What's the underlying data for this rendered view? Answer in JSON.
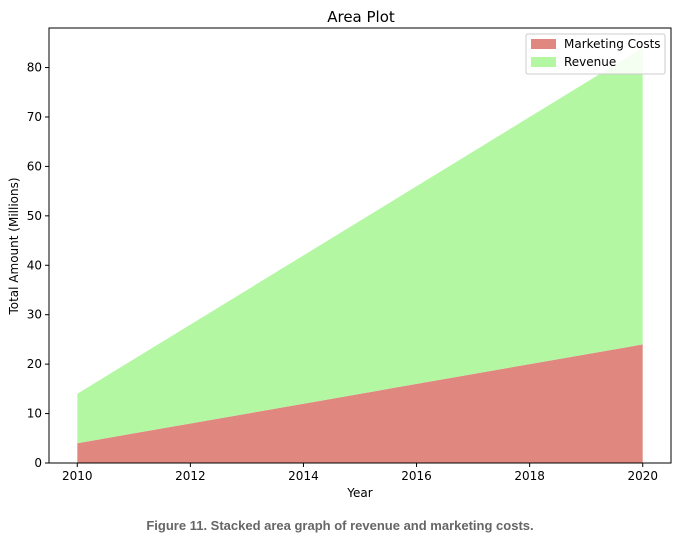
{
  "chart_data": {
    "type": "area",
    "stacked": true,
    "title": "Area Plot",
    "xlabel": "Year",
    "ylabel": "Total Amount (Millions)",
    "x": [
      2010,
      2012,
      2014,
      2016,
      2018,
      2020
    ],
    "xticks": [
      2010,
      2012,
      2014,
      2016,
      2018,
      2020
    ],
    "yticks": [
      0,
      10,
      20,
      30,
      40,
      50,
      60,
      70,
      80
    ],
    "xlim": [
      2009.5,
      2020.5
    ],
    "ylim": [
      0,
      88
    ],
    "series": [
      {
        "name": "Marketing Costs",
        "values": [
          4,
          8,
          12,
          16,
          20,
          24
        ],
        "color": "#e08880"
      },
      {
        "name": "Revenue",
        "values": [
          10,
          20,
          30,
          40,
          50,
          60
        ],
        "color": "#b3f7a3"
      }
    ],
    "legend": "top-right",
    "grid": false
  },
  "caption": "Figure 11. Stacked area graph of revenue and marketing costs."
}
